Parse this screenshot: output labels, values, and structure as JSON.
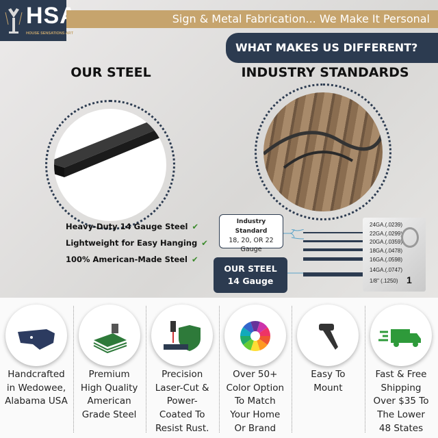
{
  "logo": {
    "text": "HSA",
    "subtitle": "HOUSE SENSATIONS ART"
  },
  "banner": {
    "tagline": "Sign & Metal Fabrication... We Make It Personal",
    "headline": "WHAT MAKES US DIFFERENT?"
  },
  "left": {
    "title": "OUR STEEL",
    "bullets": [
      "Heavy-Duty 14 Gauge Steel",
      "Lightweight for Easy Hanging",
      "100% American-Made Steel"
    ]
  },
  "right": {
    "title": "INDUSTRY STANDARDS",
    "industry_box": {
      "title": "Industry Standard",
      "line1": "18, 20, OR 22",
      "line2": "Gauge"
    },
    "our_box": {
      "line1": "OUR STEEL",
      "line2": "14 Gauge"
    },
    "gauge_labels": [
      "24GA.(.0239)",
      "22GA.(.0299)",
      "20GA.(.0359)",
      "18GA.(.0478)",
      "16GA.(.0598)",
      "14GA.(.0747)",
      "1/8\"  (.1250)"
    ],
    "ruler_mark": "1"
  },
  "colors": {
    "navy": "#2c3b50",
    "gold": "#c6a46d",
    "check": "#3a8a2a"
  },
  "features": [
    {
      "icon": "usa-map-icon",
      "lines": [
        "Handcrafted",
        "in Wedowee,",
        "Alabama USA"
      ]
    },
    {
      "icon": "steel-sheets-icon",
      "lines": [
        "Premium",
        "High Quality",
        "American",
        "Grade Steel"
      ]
    },
    {
      "icon": "laser-shield-icon",
      "lines": [
        "Precision",
        "Laser-Cut &",
        "Power-",
        "Coated To",
        "Resist Rust."
      ]
    },
    {
      "icon": "color-wheel-icon",
      "lines": [
        "Over 50+",
        "Color Option",
        "To Match",
        "Your Home",
        "Or Brand"
      ]
    },
    {
      "icon": "screw-icon",
      "lines": [
        "Easy To",
        "Mount"
      ]
    },
    {
      "icon": "shipping-truck-icon",
      "lines": [
        "Fast & Free",
        "Shipping",
        "Over $35 To",
        "The Lower",
        "48 States"
      ]
    }
  ]
}
